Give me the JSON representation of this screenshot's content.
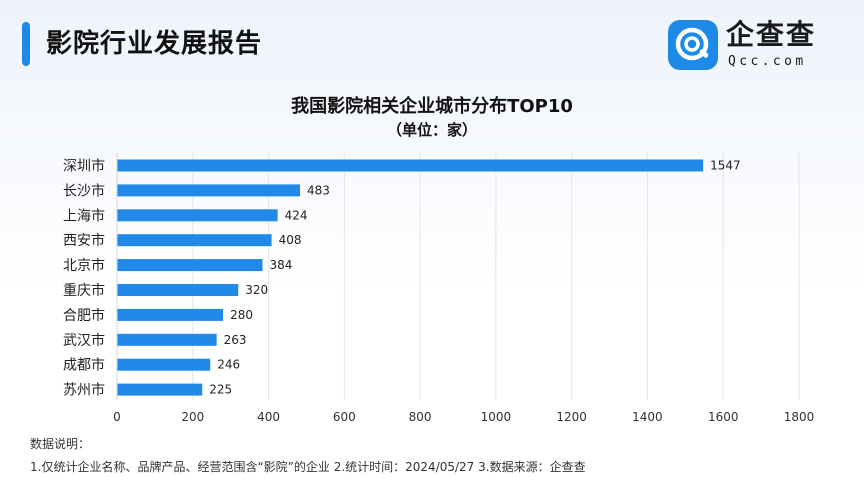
{
  "header": {
    "title": "影院行业发展报告"
  },
  "logo": {
    "name": "企查查",
    "domain": "Qcc.com",
    "icon": "qcc-logo-icon"
  },
  "chart_data": {
    "type": "bar",
    "orientation": "horizontal",
    "title": "我国影院相关企业城市分布TOP10",
    "subtitle": "（单位：家）",
    "categories": [
      "深圳市",
      "长沙市",
      "上海市",
      "西安市",
      "北京市",
      "重庆市",
      "合肥市",
      "武汉市",
      "成都市",
      "苏州市"
    ],
    "values": [
      1547,
      483,
      424,
      408,
      384,
      320,
      280,
      263,
      246,
      225
    ],
    "xlim": [
      0,
      1800
    ],
    "xticks": [
      0,
      200,
      400,
      600,
      800,
      1000,
      1200,
      1400,
      1600,
      1800
    ],
    "grid": true,
    "bar_color": "#2189e8"
  },
  "notes": {
    "heading": "数据说明：",
    "text": "1.仅统计企业名称、品牌产品、经营范围含“影院”的企业  2.统计时间：2024/05/27   3.数据来源：企查查"
  }
}
